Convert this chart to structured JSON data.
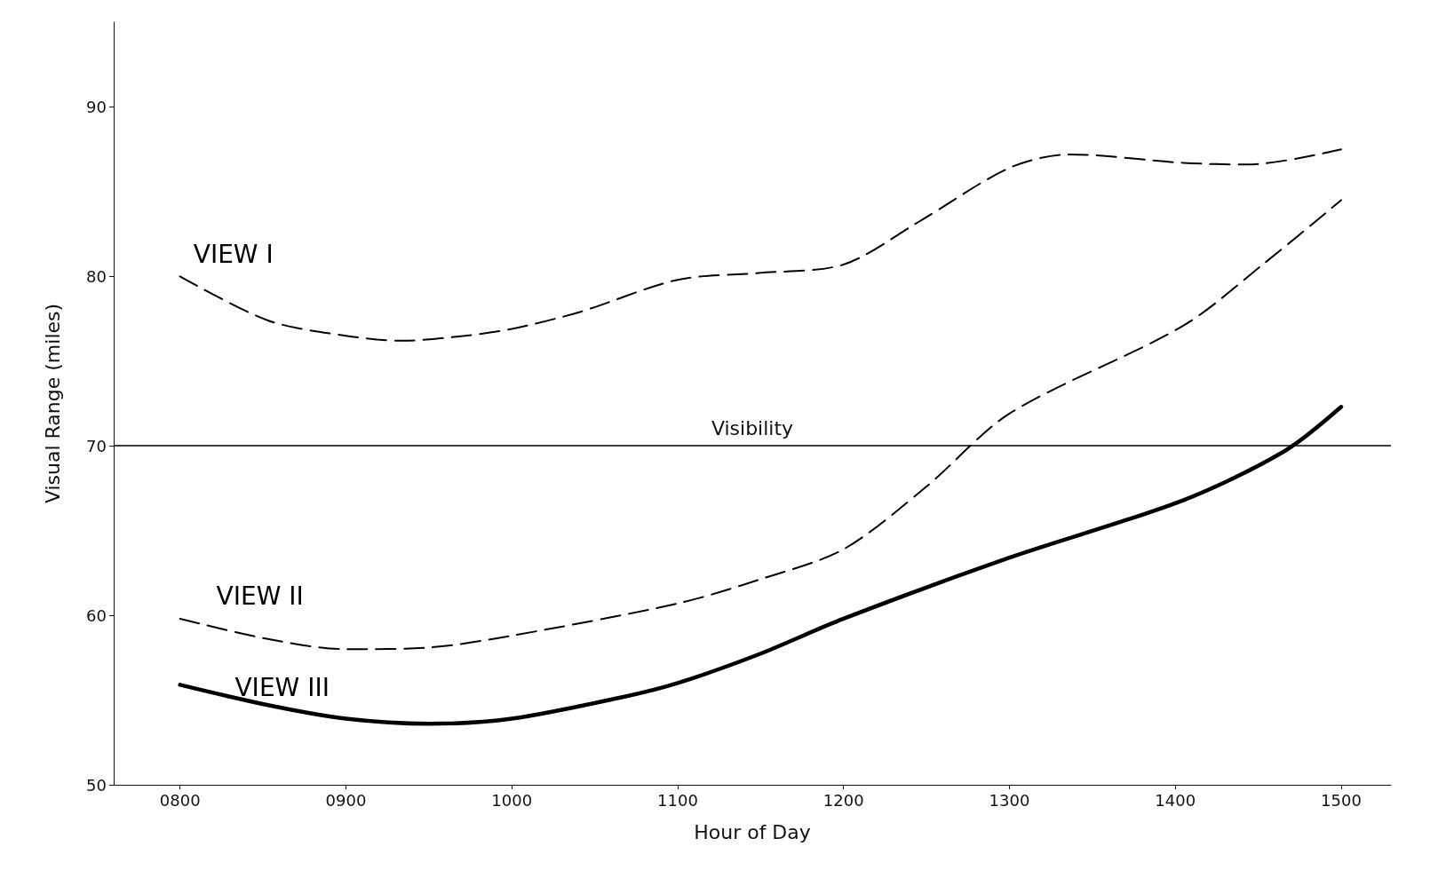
{
  "chart_data": {
    "type": "line",
    "xlabel": "Hour of Day",
    "ylabel": "Visual Range (miles)",
    "xlim": [
      760,
      1530
    ],
    "ylim": [
      50,
      95
    ],
    "xticks": [
      {
        "value": 800,
        "label": "0800"
      },
      {
        "value": 900,
        "label": "0900"
      },
      1000,
      1100,
      1200,
      1300,
      1400,
      1500
    ],
    "yticks": [
      50,
      60,
      70,
      80,
      90
    ],
    "grid": false,
    "legend": false,
    "marker": "none",
    "series": [
      {
        "name": "VIEW I",
        "color": "#000000",
        "line_style": "dashed",
        "x": [
          800,
          853,
          900,
          934,
          972,
          1000,
          1041,
          1100,
          1149,
          1200,
          1245,
          1300,
          1336,
          1405,
          1444,
          1500
        ],
        "values": [
          80,
          77.4,
          76.5,
          76.2,
          76.5,
          76.9,
          77.9,
          79.8,
          80.2,
          80.7,
          83.2,
          86.4,
          87.2,
          86.7,
          86.6,
          87.5
        ]
      },
      {
        "name": "VIEW II",
        "color": "#000000",
        "line_style": "dashed",
        "x": [
          800,
          853,
          900,
          950,
          1000,
          1100,
          1149,
          1200,
          1250,
          1300,
          1405,
          1454,
          1500
        ],
        "values": [
          59.8,
          58.6,
          58,
          58.1,
          58.8,
          60.7,
          62.1,
          63.9,
          67.6,
          71.9,
          77.1,
          80.8,
          84.5
        ]
      },
      {
        "name": "VIEW III",
        "color": "#000000",
        "line_style": "solid",
        "x": [
          800,
          853,
          900,
          950,
          1000,
          1068,
          1100,
          1149,
          1200,
          1300,
          1405,
          1466,
          1500
        ],
        "values": [
          55.9,
          54.7,
          53.9,
          53.6,
          53.9,
          55.2,
          56,
          57.7,
          59.8,
          63.4,
          66.8,
          69.7,
          72.3
        ]
      }
    ],
    "ref_lines": [
      {
        "axis": "y",
        "value": 70,
        "label": "Visibility",
        "color": "#000000",
        "line_style": "solid"
      }
    ]
  }
}
